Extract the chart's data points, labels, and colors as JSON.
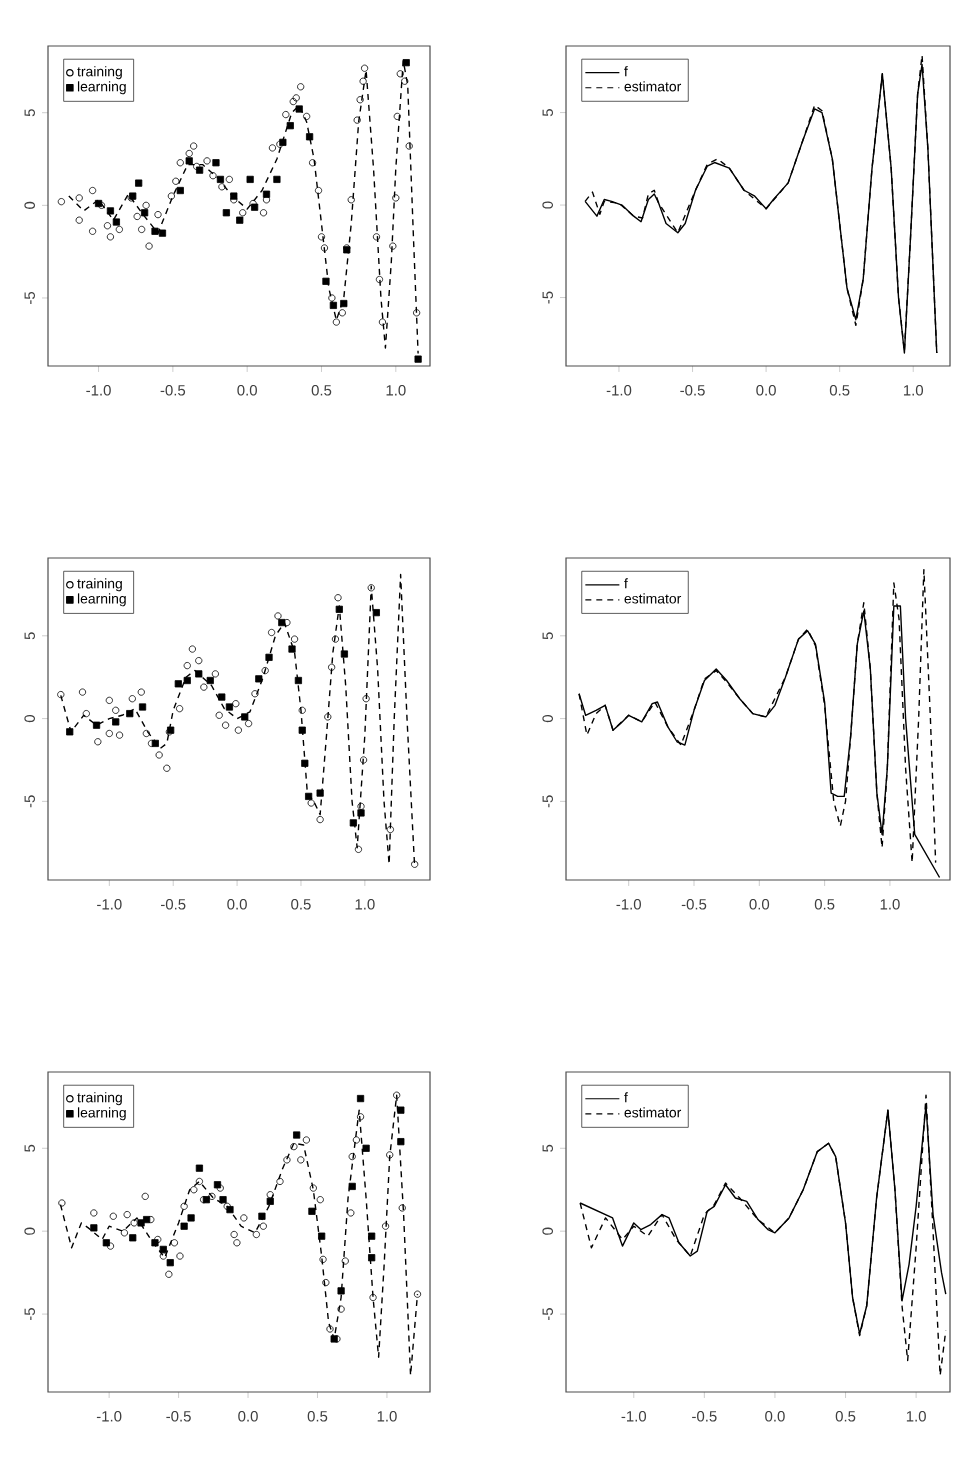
{
  "chart_data": [
    {
      "type": "scatter",
      "xlim": [
        -1.34,
        1.23
      ],
      "ylim": [
        -8.67,
        8.6
      ],
      "legend": "top left",
      "xticks": [
        {
          "value": -1,
          "label": "-1.0"
        },
        {
          "value": -0.5,
          "label": "-0.5"
        },
        {
          "value": 0,
          "label": "0.0"
        },
        {
          "value": 0.5,
          "label": "0.5"
        },
        {
          "value": 1,
          "label": "1.0"
        }
      ],
      "yticks": [
        -5,
        0,
        5
      ],
      "series": [
        {
          "name": "training",
          "color": "#000000",
          "marker": "circle",
          "x": [
            -1.25,
            -1.13,
            -1.13,
            -1.04,
            -1.04,
            -0.98,
            -0.94,
            -0.92,
            -0.86,
            -0.78,
            -0.74,
            -0.71,
            -0.68,
            -0.66,
            -0.6,
            -0.51,
            -0.48,
            -0.45,
            -0.39,
            -0.36,
            -0.34,
            -0.27,
            -0.23,
            -0.17,
            -0.12,
            -0.09,
            -0.03,
            0.04,
            0.11,
            0.13,
            0.17,
            0.22,
            0.26,
            0.31,
            0.33,
            0.36,
            0.4,
            0.44,
            0.48,
            0.5,
            0.52,
            0.57,
            0.6,
            0.64,
            0.67,
            0.7,
            0.74,
            0.76,
            0.78,
            0.79,
            0.87,
            0.89,
            0.91,
            0.98,
            1.0,
            1.01,
            1.03,
            1.06,
            1.09,
            1.14
          ],
          "values": [
            0.2,
            -0.8,
            0.4,
            -1.4,
            0.8,
            0,
            -1.1,
            -1.7,
            -1.3,
            0.4,
            -0.6,
            -1.3,
            0,
            -2.2,
            -0.5,
            0.5,
            1.3,
            2.3,
            2.8,
            3.2,
            2.1,
            2.4,
            1.6,
            1.0,
            1.4,
            0.3,
            -0.4,
            0.1,
            -0.4,
            0.3,
            3.1,
            3.3,
            4.9,
            5.6,
            5.8,
            6.4,
            4.8,
            2.3,
            0.8,
            -1.7,
            -2.3,
            -5.0,
            -6.3,
            -5.8,
            -2.3,
            0.3,
            4.6,
            5.7,
            6.7,
            7.4,
            -1.7,
            -4.0,
            -6.3,
            -2.2,
            0.4,
            4.8,
            7.1,
            6.7,
            3.2,
            -5.8
          ]
        },
        {
          "name": "learning",
          "color": "#000000",
          "marker": "square",
          "x": [
            -1.0,
            -0.92,
            -0.88,
            -0.77,
            -0.73,
            -0.69,
            -0.62,
            -0.57,
            -0.45,
            -0.39,
            -0.32,
            -0.21,
            -0.18,
            -0.14,
            -0.09,
            -0.05,
            0.02,
            0.05,
            0.13,
            0.2,
            0.24,
            0.29,
            0.35,
            0.42,
            0.53,
            0.58,
            0.65,
            0.67,
            1.07,
            1.15
          ],
          "values": [
            0.1,
            -0.3,
            -0.9,
            0.5,
            1.2,
            -0.4,
            -1.4,
            -1.5,
            0.8,
            2.4,
            1.9,
            2.3,
            1.4,
            -0.4,
            0.5,
            -0.8,
            1.4,
            -0.1,
            0.6,
            1.4,
            3.4,
            4.3,
            5.2,
            3.7,
            -4.1,
            -5.4,
            -5.3,
            -2.4,
            7.7,
            -8.3
          ]
        },
        {
          "type": "line",
          "color": "#000000",
          "marker": "none",
          "line_style": "dashed",
          "x": [
            -1.2,
            -1.1,
            -1.0,
            -0.9,
            -0.8,
            -0.7,
            -0.6,
            -0.5,
            -0.4,
            -0.3,
            -0.2,
            -0.1,
            0.0,
            0.1,
            0.2,
            0.3,
            0.35,
            0.4,
            0.45,
            0.5,
            0.55,
            0.6,
            0.65,
            0.7,
            0.75,
            0.8,
            0.85,
            0.9,
            0.93,
            0.97,
            1.0,
            1.05,
            1.08,
            1.12,
            1.15
          ],
          "values": [
            0.5,
            -0.3,
            0.3,
            -0.8,
            0.6,
            -0.5,
            -1.5,
            0.5,
            2.2,
            2.2,
            1.5,
            0.5,
            -0.2,
            0.8,
            2.5,
            5.0,
            5.4,
            4.5,
            2.5,
            -1,
            -4.5,
            -6.2,
            -5,
            -1,
            4.5,
            7.3,
            2,
            -5,
            -7.7,
            -3,
            2,
            7.8,
            6.5,
            -2,
            -8.0
          ]
        }
      ]
    },
    {
      "type": "line",
      "xlim": [
        -1.36,
        1.25
      ],
      "ylim": [
        -8.7,
        8.6
      ],
      "legend": "top left",
      "xticks": [
        {
          "value": -1,
          "label": "-1.0"
        },
        {
          "value": -0.5,
          "label": "-0.5"
        },
        {
          "value": 0,
          "label": "0.0"
        },
        {
          "value": 0.5,
          "label": "0.5"
        },
        {
          "value": 1,
          "label": "1.0"
        }
      ],
      "yticks": [
        -5,
        0,
        5
      ],
      "series": [
        {
          "name": "f",
          "color": "#000000",
          "line_style": "solid",
          "x": [
            -1.23,
            -1.15,
            -1.1,
            -1.05,
            -0.98,
            -0.9,
            -0.85,
            -0.8,
            -0.76,
            -0.73,
            -0.68,
            -0.6,
            -0.55,
            -0.48,
            -0.4,
            -0.35,
            -0.25,
            -0.15,
            -0.08,
            0.0,
            0.05,
            0.15,
            0.25,
            0.33,
            0.38,
            0.45,
            0.5,
            0.55,
            0.61,
            0.66,
            0.72,
            0.79,
            0.85,
            0.9,
            0.94,
            0.98,
            1.03,
            1.06,
            1.1,
            1.16
          ],
          "values": [
            0.2,
            -0.6,
            0.3,
            0.2,
            0,
            -0.6,
            -0.9,
            0.3,
            0.6,
            0.1,
            -1.0,
            -1.5,
            -1.0,
            0.8,
            2.1,
            2.3,
            2.0,
            0.8,
            0.5,
            -0.2,
            0.3,
            1.2,
            3.5,
            5.2,
            5.0,
            2.5,
            -1.0,
            -4.5,
            -6.2,
            -4.0,
            2.0,
            7.1,
            2.0,
            -5.0,
            -8.0,
            -2.0,
            6.0,
            7.6,
            3.0,
            -8.0
          ]
        },
        {
          "name": "estimator",
          "color": "#000000",
          "line_style": "dashed",
          "x": [
            -1.23,
            -1.18,
            -1.13,
            -1.1,
            -1.0,
            -0.9,
            -0.84,
            -0.8,
            -0.76,
            -0.73,
            -0.6,
            -0.48,
            -0.4,
            -0.33,
            -0.25,
            -0.15,
            0.0,
            0.15,
            0.25,
            0.33,
            0.38,
            0.45,
            0.5,
            0.55,
            0.61,
            0.66,
            0.72,
            0.79,
            0.85,
            0.9,
            0.94,
            0.98,
            1.03,
            1.06,
            1.1,
            1.16
          ],
          "values": [
            0.2,
            0.7,
            -0.5,
            0.2,
            0.1,
            -0.6,
            -0.7,
            0.6,
            0.8,
            0.1,
            -1.5,
            0.8,
            2.2,
            2.5,
            2.0,
            0.8,
            -0.2,
            1.2,
            3.5,
            5.4,
            5.1,
            2.5,
            -1.0,
            -4.5,
            -6.5,
            -4.0,
            2.0,
            7.1,
            2.0,
            -5.0,
            -7.9,
            -2.0,
            6.0,
            8.1,
            3.0,
            -8.0
          ]
        }
      ]
    },
    {
      "type": "scatter",
      "xlim": [
        -1.48,
        1.51
      ],
      "ylim": [
        -9.75,
        9.7
      ],
      "legend": "top left",
      "xticks": [
        {
          "value": -1,
          "label": "-1.0"
        },
        {
          "value": -0.5,
          "label": "-0.5"
        },
        {
          "value": 0,
          "label": "0.0"
        },
        {
          "value": 0.5,
          "label": "0.5"
        },
        {
          "value": 1,
          "label": "1.0"
        }
      ],
      "yticks": [
        -5,
        0,
        5
      ],
      "series": [
        {
          "name": "training",
          "color": "#000000",
          "marker": "circle",
          "x": [
            -1.38,
            -1.21,
            -1.18,
            -1.09,
            -1.0,
            -1.0,
            -0.92,
            -0.95,
            -0.82,
            -0.75,
            -0.71,
            -0.67,
            -0.61,
            -0.55,
            -0.53,
            -0.45,
            -0.39,
            -0.35,
            -0.3,
            -0.26,
            -0.17,
            -0.14,
            -0.09,
            -0.01,
            0.01,
            0.09,
            0.14,
            0.22,
            0.27,
            0.32,
            0.39,
            0.45,
            0.51,
            0.58,
            0.65,
            0.71,
            0.74,
            0.77,
            0.79,
            0.95,
            0.97,
            0.99,
            1.01,
            1.05,
            1.2,
            1.39
          ],
          "values": [
            1.45,
            1.6,
            0.3,
            -1.4,
            1.1,
            -0.9,
            -1.0,
            0.5,
            1.2,
            1.6,
            -0.9,
            -1.5,
            -2.2,
            -3.0,
            -0.8,
            0.6,
            3.2,
            4.2,
            3.5,
            1.9,
            2.7,
            0.2,
            -0.4,
            0.9,
            -0.7,
            -0.3,
            1.5,
            2.9,
            5.2,
            6.2,
            5.8,
            4.8,
            0.5,
            -5.1,
            -6.1,
            0.1,
            3.1,
            4.8,
            7.3,
            -7.9,
            -5.3,
            -2.5,
            1.2,
            7.9,
            -6.7,
            -8.8
          ]
        },
        {
          "name": "learning",
          "color": "#000000",
          "marker": "square",
          "x": [
            -1.31,
            -1.1,
            -0.95,
            -0.84,
            -0.74,
            -0.64,
            -0.52,
            -0.46,
            -0.39,
            -0.3,
            -0.21,
            -0.12,
            -0.06,
            0.06,
            0.17,
            0.25,
            0.35,
            0.43,
            0.48,
            0.51,
            0.53,
            0.56,
            0.65,
            0.8,
            0.84,
            0.91,
            0.97,
            1.09
          ],
          "values": [
            -0.8,
            -0.4,
            -0.2,
            0.3,
            0.7,
            -1.5,
            -0.7,
            2.1,
            2.3,
            2.7,
            2.3,
            1.3,
            0.7,
            0.1,
            2.4,
            3.7,
            5.8,
            4.2,
            2.3,
            -0.7,
            -2.7,
            -4.7,
            -4.5,
            6.6,
            3.9,
            -6.3,
            -5.7,
            6.4
          ]
        },
        {
          "type": "line",
          "color": "#000000",
          "marker": "none",
          "line_style": "dashed",
          "x": [
            -1.38,
            -1.3,
            -1.2,
            -1.1,
            -1.0,
            -0.9,
            -0.8,
            -0.7,
            -0.6,
            -0.55,
            -0.5,
            -0.4,
            -0.33,
            -0.2,
            -0.1,
            0.0,
            0.1,
            0.2,
            0.3,
            0.37,
            0.45,
            0.5,
            0.55,
            0.6,
            0.65,
            0.7,
            0.75,
            0.8,
            0.85,
            0.9,
            0.94,
            1.0,
            1.05,
            1.1,
            1.15,
            1.19,
            1.23,
            1.28,
            1.33,
            1.39
          ],
          "values": [
            1.4,
            -0.8,
            0.2,
            -0.4,
            0.0,
            0.2,
            0.6,
            -0.8,
            -1.8,
            -1.5,
            0.5,
            2.5,
            2.9,
            2.0,
            0.6,
            0.0,
            0.4,
            2.4,
            5.0,
            5.8,
            4.0,
            0.5,
            -4.5,
            -5.0,
            -5.8,
            -1,
            4.0,
            6.8,
            2,
            -5,
            -7.8,
            -1,
            8.0,
            3,
            -5,
            -8.8,
            0,
            8.7,
            0,
            -9.0
          ]
        }
      ]
    },
    {
      "type": "line",
      "xlim": [
        -1.48,
        1.46
      ],
      "ylim": [
        -9.75,
        9.7
      ],
      "legend": "top left",
      "xticks": [
        {
          "value": -1,
          "label": "-1.0"
        },
        {
          "value": -0.5,
          "label": "-0.5"
        },
        {
          "value": 0,
          "label": "0.0"
        },
        {
          "value": 0.5,
          "label": "0.5"
        },
        {
          "value": 1,
          "label": "1.0"
        }
      ],
      "yticks": [
        -5,
        0,
        5
      ],
      "series": [
        {
          "name": "f",
          "color": "#000000",
          "line_style": "solid",
          "x": [
            -1.38,
            -1.33,
            -1.25,
            -1.18,
            -1.12,
            -1.05,
            -1.0,
            -0.9,
            -0.82,
            -0.78,
            -0.7,
            -0.63,
            -0.57,
            -0.5,
            -0.42,
            -0.33,
            -0.25,
            -0.15,
            -0.05,
            0.05,
            0.12,
            0.2,
            0.3,
            0.37,
            0.43,
            0.5,
            0.55,
            0.6,
            0.65,
            0.7,
            0.75,
            0.8,
            0.85,
            0.9,
            0.94,
            0.98,
            1.03,
            1.08,
            1.12,
            1.19,
            1.38
          ],
          "values": [
            1.5,
            0.2,
            0.5,
            0.8,
            -0.7,
            -0.2,
            0.2,
            -0.2,
            0.9,
            1.0,
            -0.5,
            -1.4,
            -1.6,
            0.5,
            2.3,
            3.0,
            2.3,
            1.2,
            0.3,
            0.1,
            0.8,
            2.5,
            4.8,
            5.3,
            4.5,
            1.0,
            -4.5,
            -4.7,
            -4.7,
            -1.0,
            4.5,
            6.5,
            3.0,
            -4.5,
            -7.0,
            -3.0,
            6.8,
            6.8,
            0,
            -7.0,
            -9.6
          ]
        },
        {
          "name": "estimator",
          "color": "#000000",
          "line_style": "dashed",
          "x": [
            -1.38,
            -1.32,
            -1.25,
            -1.18,
            -1.12,
            -1.0,
            -0.9,
            -0.8,
            -0.7,
            -0.6,
            -0.5,
            -0.42,
            -0.33,
            -0.25,
            -0.15,
            -0.05,
            0.05,
            0.2,
            0.3,
            0.37,
            0.43,
            0.5,
            0.57,
            0.62,
            0.66,
            0.7,
            0.75,
            0.8,
            0.85,
            0.9,
            0.94,
            0.98,
            1.03,
            1.07,
            1.12,
            1.17,
            1.22,
            1.26,
            1.31,
            1.35
          ],
          "values": [
            1.5,
            -1.0,
            0.3,
            0.8,
            -0.7,
            0.2,
            -0.2,
            1.0,
            -0.5,
            -1.6,
            0.5,
            2.4,
            2.9,
            2.2,
            1.2,
            0.3,
            0.1,
            2.5,
            4.8,
            5.4,
            4.4,
            0.8,
            -5.0,
            -6.5,
            -5.0,
            -1.0,
            4.5,
            7.0,
            3.0,
            -4.5,
            -7.8,
            -3.0,
            8.2,
            6.0,
            -3,
            -8.7,
            0,
            9.0,
            0,
            -8.7
          ]
        }
      ]
    },
    {
      "type": "scatter",
      "xlim": [
        -1.44,
        1.31
      ],
      "ylim": [
        -9.7,
        9.6
      ],
      "legend": "top left",
      "xticks": [
        {
          "value": -1,
          "label": "-1.0"
        },
        {
          "value": -0.5,
          "label": "-0.5"
        },
        {
          "value": 0,
          "label": "0.0"
        },
        {
          "value": 0.5,
          "label": "0.5"
        },
        {
          "value": 1,
          "label": "1.0"
        }
      ],
      "yticks": [
        -5,
        0,
        5
      ],
      "series": [
        {
          "name": "training",
          "color": "#000000",
          "marker": "circle",
          "x": [
            -1.34,
            -1.11,
            -0.99,
            -0.97,
            -0.89,
            -0.87,
            -0.82,
            -0.74,
            -0.7,
            -0.65,
            -0.61,
            -0.57,
            -0.53,
            -0.49,
            -0.46,
            -0.39,
            -0.35,
            -0.32,
            -0.26,
            -0.2,
            -0.15,
            -0.1,
            -0.08,
            -0.03,
            0.06,
            0.11,
            0.16,
            0.23,
            0.28,
            0.33,
            0.38,
            0.42,
            0.47,
            0.52,
            0.54,
            0.56,
            0.59,
            0.64,
            0.67,
            0.7,
            0.74,
            0.75,
            0.78,
            0.81,
            0.9,
            0.99,
            1.02,
            1.07,
            1.11,
            1.22
          ],
          "values": [
            1.7,
            1.1,
            -0.9,
            0.9,
            -0.1,
            1.0,
            0.5,
            2.1,
            0.7,
            -0.5,
            -1.5,
            -2.6,
            -0.7,
            -1.5,
            1.5,
            2.5,
            3.0,
            1.9,
            2.1,
            2.6,
            1.5,
            -0.2,
            -0.7,
            0.8,
            -0.2,
            0.3,
            2.2,
            3.0,
            4.3,
            5.1,
            4.3,
            5.5,
            2.6,
            1.9,
            -1.7,
            -3.1,
            -5.9,
            -6.5,
            -4.7,
            -1.8,
            1.1,
            4.5,
            5.5,
            6.9,
            -4.0,
            0.3,
            4.6,
            8.2,
            1.4,
            -3.8
          ]
        },
        {
          "name": "learning",
          "color": "#000000",
          "marker": "square",
          "x": [
            -1.11,
            -1.02,
            -0.83,
            -0.77,
            -0.73,
            -0.67,
            -0.61,
            -0.56,
            -0.46,
            -0.41,
            -0.35,
            -0.3,
            -0.22,
            -0.18,
            -0.13,
            0.1,
            0.16,
            0.35,
            0.46,
            0.53,
            0.62,
            0.67,
            0.75,
            0.81,
            0.85,
            0.89,
            0.89,
            1.1,
            1.1
          ],
          "values": [
            0.2,
            -0.7,
            -0.4,
            0.5,
            0.7,
            -0.7,
            -1.1,
            -1.9,
            0.3,
            0.8,
            3.8,
            1.9,
            2.8,
            1.9,
            1.3,
            0.9,
            1.8,
            5.8,
            1.2,
            -0.3,
            -6.5,
            -3.6,
            2.7,
            8.0,
            5.0,
            -0.3,
            -1.6,
            7.3,
            5.4
          ]
        },
        {
          "type": "line",
          "color": "#000000",
          "marker": "none",
          "line_style": "dashed",
          "x": [
            -1.35,
            -1.27,
            -1.2,
            -1.15,
            -1.05,
            -1.0,
            -0.9,
            -0.8,
            -0.7,
            -0.6,
            -0.5,
            -0.42,
            -0.35,
            -0.25,
            -0.15,
            -0.05,
            0.05,
            0.15,
            0.25,
            0.33,
            0.4,
            0.47,
            0.53,
            0.58,
            0.62,
            0.67,
            0.72,
            0.8,
            0.85,
            0.9,
            0.94,
            0.98,
            1.02,
            1.07,
            1.12,
            1.17,
            1.22
          ],
          "values": [
            1.6,
            -1.0,
            0.5,
            0.2,
            -0.5,
            0.3,
            0.0,
            0.8,
            -0.5,
            -1.6,
            0.5,
            2.5,
            3.0,
            2.0,
            1.5,
            0.3,
            -0.1,
            1.5,
            3.8,
            5.3,
            5.2,
            2.5,
            -1.5,
            -5.5,
            -6.5,
            -4,
            2,
            7.3,
            2,
            -4,
            -7.6,
            -2,
            4.5,
            8.2,
            1,
            -8.7,
            -3.8
          ]
        }
      ]
    },
    {
      "type": "line",
      "xlim": [
        -1.48,
        1.24
      ],
      "ylim": [
        -9.7,
        9.6
      ],
      "legend": "top left",
      "xticks": [
        {
          "value": -1,
          "label": "-1.0"
        },
        {
          "value": -0.5,
          "label": "-0.5"
        },
        {
          "value": 0,
          "label": "0.0"
        },
        {
          "value": 0.5,
          "label": "0.5"
        },
        {
          "value": 1,
          "label": "1.0"
        }
      ],
      "yticks": [
        -5,
        0,
        5
      ],
      "series": [
        {
          "name": "f",
          "color": "#000000",
          "line_style": "solid",
          "x": [
            -1.38,
            -1.15,
            -1.08,
            -1.0,
            -0.95,
            -0.88,
            -0.8,
            -0.75,
            -0.68,
            -0.6,
            -0.55,
            -0.48,
            -0.43,
            -0.35,
            -0.28,
            -0.2,
            -0.12,
            -0.05,
            0.0,
            0.1,
            0.2,
            0.3,
            0.38,
            0.43,
            0.5,
            0.55,
            0.6,
            0.65,
            0.72,
            0.8,
            0.85,
            0.9,
            0.95,
            1.0,
            1.07,
            1.12,
            1.18,
            1.21
          ],
          "values": [
            1.7,
            0.8,
            -0.9,
            0.5,
            0.1,
            0.4,
            1.0,
            0.8,
            -0.7,
            -1.5,
            -1.2,
            1.2,
            1.5,
            2.8,
            2.0,
            1.8,
            0.7,
            0.1,
            -0.1,
            0.8,
            2.5,
            4.8,
            5.3,
            4.5,
            0.5,
            -4,
            -6.2,
            -4.5,
            2.0,
            7.3,
            2.5,
            -4.2,
            -2,
            1.5,
            7.6,
            1.0,
            -2.5,
            -3.8
          ]
        },
        {
          "name": "estimator",
          "color": "#000000",
          "line_style": "dashed",
          "x": [
            -1.38,
            -1.3,
            -1.2,
            -1.08,
            -1.0,
            -0.9,
            -0.8,
            -0.7,
            -0.6,
            -0.5,
            -0.43,
            -0.35,
            -0.25,
            -0.12,
            0.0,
            0.1,
            0.2,
            0.3,
            0.38,
            0.43,
            0.5,
            0.55,
            0.6,
            0.65,
            0.72,
            0.8,
            0.85,
            0.9,
            0.94,
            1.0,
            1.07,
            1.12,
            1.17,
            1.21
          ],
          "values": [
            1.7,
            -1.0,
            0.8,
            -0.5,
            0.3,
            -0.3,
            1.0,
            -0.5,
            -1.5,
            1.0,
            1.6,
            2.9,
            2.0,
            0.7,
            -0.1,
            0.8,
            2.5,
            4.8,
            5.3,
            4.5,
            0.5,
            -4,
            -6.3,
            -4.5,
            2.0,
            7.3,
            2.5,
            -4.5,
            -7.8,
            -1,
            8.2,
            0,
            -8.7,
            -6.0
          ]
        }
      ]
    }
  ]
}
